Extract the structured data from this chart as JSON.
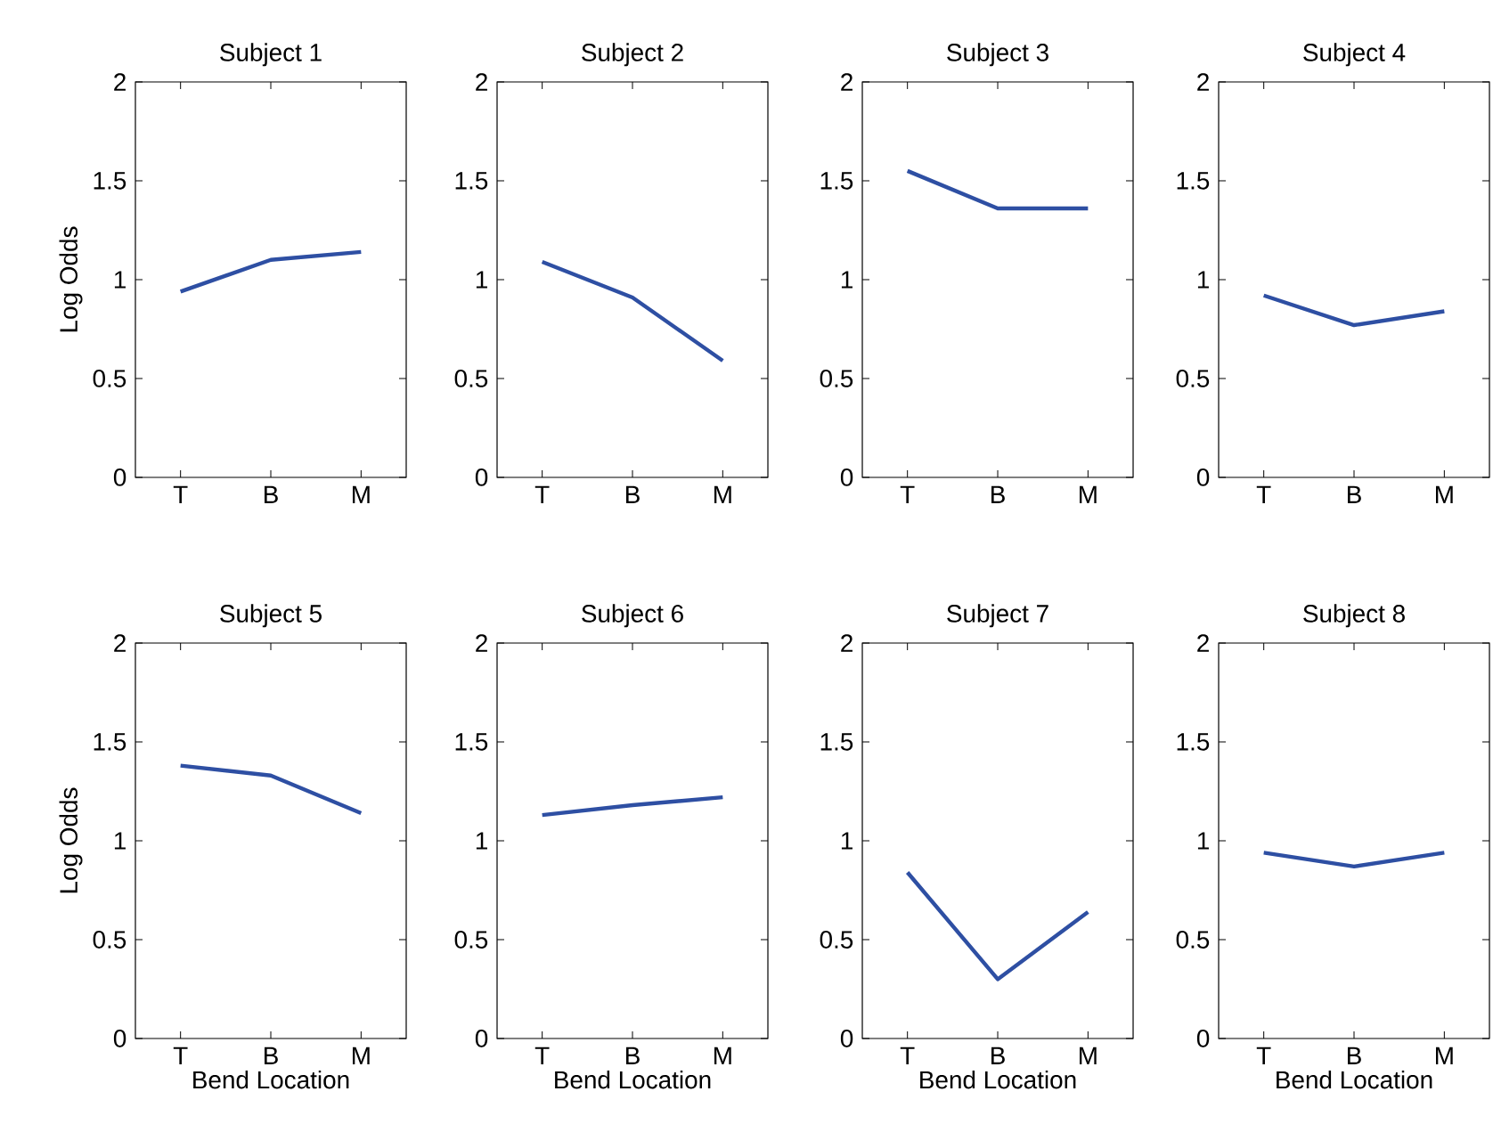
{
  "chart_data": [
    {
      "type": "line",
      "title": "Subject 1",
      "ylabel": "Log Odds",
      "categories": [
        "T",
        "B",
        "M"
      ],
      "values": [
        0.94,
        1.1,
        1.14
      ],
      "color": "#2e4fa3",
      "ylim": [
        0,
        2
      ],
      "yticks": [
        0,
        0.5,
        1,
        1.5,
        2
      ]
    },
    {
      "type": "line",
      "title": "Subject 2",
      "categories": [
        "T",
        "B",
        "M"
      ],
      "values": [
        1.09,
        0.91,
        0.59
      ],
      "color": "#2e4fa3",
      "ylim": [
        0,
        2
      ],
      "yticks": [
        0,
        0.5,
        1,
        1.5,
        2
      ]
    },
    {
      "type": "line",
      "title": "Subject 3",
      "categories": [
        "T",
        "B",
        "M"
      ],
      "values": [
        1.55,
        1.36,
        1.36
      ],
      "color": "#2e4fa3",
      "ylim": [
        0,
        2
      ],
      "yticks": [
        0,
        0.5,
        1,
        1.5,
        2
      ]
    },
    {
      "type": "line",
      "title": "Subject 4",
      "categories": [
        "T",
        "B",
        "M"
      ],
      "values": [
        0.92,
        0.77,
        0.84
      ],
      "color": "#2e4fa3",
      "ylim": [
        0,
        2
      ],
      "yticks": [
        0,
        0.5,
        1,
        1.5,
        2
      ]
    },
    {
      "type": "line",
      "title": "Subject 5",
      "ylabel": "Log Odds",
      "xlabel": "Bend Location",
      "categories": [
        "T",
        "B",
        "M"
      ],
      "values": [
        1.38,
        1.33,
        1.14
      ],
      "color": "#2e4fa3",
      "ylim": [
        0,
        2
      ],
      "yticks": [
        0,
        0.5,
        1,
        1.5,
        2
      ]
    },
    {
      "type": "line",
      "title": "Subject 6",
      "xlabel": "Bend Location",
      "categories": [
        "T",
        "B",
        "M"
      ],
      "values": [
        1.13,
        1.18,
        1.22
      ],
      "color": "#2e4fa3",
      "ylim": [
        0,
        2
      ],
      "yticks": [
        0,
        0.5,
        1,
        1.5,
        2
      ]
    },
    {
      "type": "line",
      "title": "Subject 7",
      "xlabel": "Bend Location",
      "categories": [
        "T",
        "B",
        "M"
      ],
      "values": [
        0.84,
        0.3,
        0.64
      ],
      "color": "#2e4fa3",
      "ylim": [
        0,
        2
      ],
      "yticks": [
        0,
        0.5,
        1,
        1.5,
        2
      ]
    },
    {
      "type": "line",
      "title": "Subject 8",
      "xlabel": "Bend Location",
      "categories": [
        "T",
        "B",
        "M"
      ],
      "values": [
        0.94,
        0.87,
        0.94
      ],
      "color": "#2e4fa3",
      "ylim": [
        0,
        2
      ],
      "yticks": [
        0,
        0.5,
        1,
        1.5,
        2
      ]
    }
  ]
}
